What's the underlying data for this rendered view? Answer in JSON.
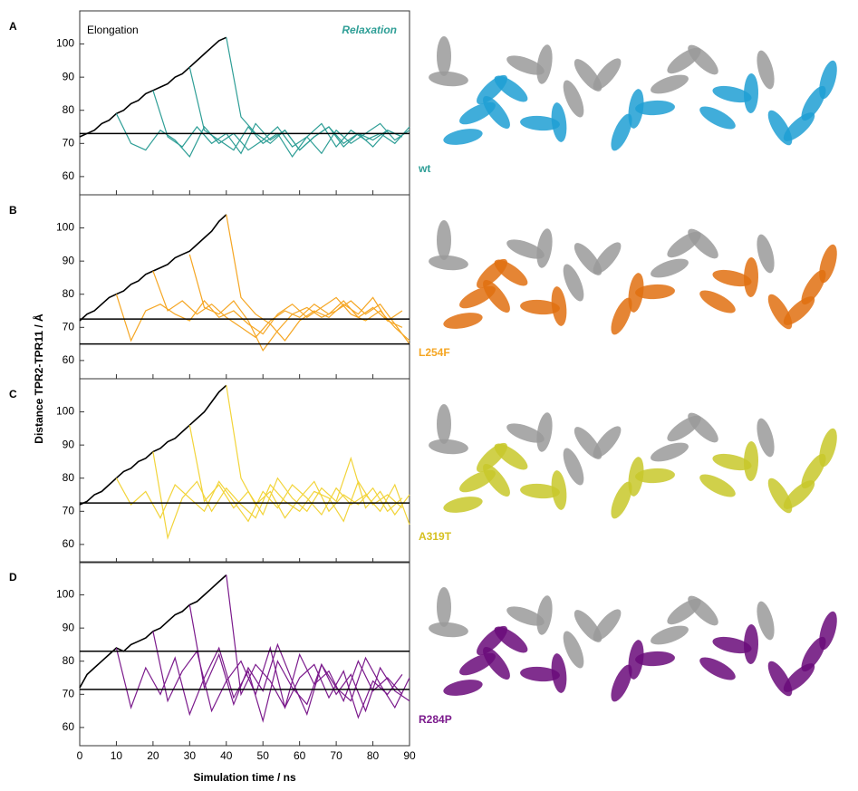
{
  "chart_data": [
    {
      "type": "line",
      "panel": "A",
      "label": "wt",
      "label_color": "#2e9e96",
      "structure_color": "#1e9fd4",
      "annotations": [
        {
          "text": "Elongation",
          "color": "#000000"
        },
        {
          "text": "Relaxation",
          "color": "#2e9e96"
        }
      ],
      "ylabel": "Distance TPR2-TPR11 / Å",
      "xlim": [
        0,
        90
      ],
      "xticks": [
        0,
        10,
        20,
        30,
        40,
        50,
        60,
        70,
        80,
        90
      ],
      "ylim": [
        54.5,
        110
      ],
      "yticks": [
        60,
        70,
        80,
        90,
        100
      ],
      "reference_lines": [
        73
      ],
      "series": [
        {
          "color": "#000000",
          "x": [
            0,
            2,
            4,
            6,
            8,
            10,
            12,
            14,
            16,
            18,
            20,
            22,
            24,
            26,
            28,
            30,
            32,
            34,
            36,
            38,
            40
          ],
          "values": [
            72,
            73,
            74,
            76,
            77,
            79,
            80,
            82,
            83,
            85,
            86,
            87,
            88,
            90,
            91,
            93,
            95,
            97,
            99,
            101,
            102
          ]
        },
        {
          "color": "#2e9e96",
          "x": [
            10,
            14,
            18,
            22,
            26,
            30,
            34,
            38,
            42,
            46,
            50,
            54,
            58,
            62,
            66,
            70,
            74,
            78,
            82,
            86,
            90
          ],
          "values": [
            79,
            70,
            68,
            74,
            71,
            66,
            75,
            70,
            73,
            68,
            71,
            75,
            69,
            72,
            67,
            74,
            70,
            73,
            76,
            71,
            74
          ]
        },
        {
          "color": "#2e9e96",
          "x": [
            20,
            24,
            28,
            32,
            36,
            40,
            44,
            48,
            52,
            56,
            60,
            64,
            68,
            72,
            76,
            80,
            84,
            88
          ],
          "values": [
            86,
            72,
            69,
            75,
            70,
            73,
            67,
            76,
            71,
            74,
            68,
            72,
            75,
            70,
            73,
            69,
            74,
            72
          ]
        },
        {
          "color": "#2e9e96",
          "x": [
            30,
            34,
            38,
            42,
            46,
            50,
            54,
            58,
            62,
            66,
            70,
            74,
            78,
            82,
            86,
            90
          ],
          "values": [
            93,
            74,
            71,
            68,
            75,
            70,
            73,
            66,
            72,
            76,
            69,
            74,
            71,
            73,
            70,
            75
          ]
        },
        {
          "color": "#2e9e96",
          "x": [
            40,
            44,
            48,
            52,
            56,
            60,
            64,
            68,
            72,
            76,
            80,
            84,
            88
          ],
          "values": [
            102,
            78,
            73,
            70,
            74,
            68,
            72,
            75,
            69,
            73,
            71,
            74,
            72
          ]
        }
      ]
    },
    {
      "type": "line",
      "panel": "B",
      "label": "L254F",
      "label_color": "#f5a623",
      "structure_color": "#e07010",
      "xlim": [
        0,
        90
      ],
      "xticks": [
        0,
        10,
        20,
        30,
        40,
        50,
        60,
        70,
        80,
        90
      ],
      "ylim": [
        54.5,
        110
      ],
      "yticks": [
        60,
        70,
        80,
        90,
        100
      ],
      "reference_lines": [
        72.5,
        65
      ],
      "series": [
        {
          "color": "#000000",
          "x": [
            0,
            2,
            4,
            6,
            8,
            10,
            12,
            14,
            16,
            18,
            20,
            22,
            24,
            26,
            28,
            30,
            32,
            34,
            36,
            38,
            40
          ],
          "values": [
            72,
            74,
            75,
            77,
            79,
            80,
            81,
            83,
            84,
            86,
            87,
            88,
            89,
            91,
            92,
            93,
            95,
            97,
            99,
            102,
            104
          ]
        },
        {
          "color": "#f5a623",
          "x": [
            10,
            14,
            18,
            22,
            26,
            30,
            34,
            38,
            42,
            46,
            50,
            54,
            58,
            62,
            66,
            70,
            74,
            78,
            82,
            86,
            90
          ],
          "values": [
            80,
            66,
            75,
            77,
            74,
            72,
            78,
            73,
            75,
            71,
            68,
            74,
            77,
            73,
            76,
            79,
            74,
            72,
            75,
            70,
            66
          ]
        },
        {
          "color": "#f5a623",
          "x": [
            20,
            24,
            28,
            32,
            36,
            40,
            44,
            48,
            52,
            56,
            60,
            64,
            68,
            72,
            76,
            80,
            84,
            88
          ],
          "values": [
            87,
            75,
            78,
            74,
            77,
            73,
            70,
            67,
            72,
            75,
            73,
            77,
            74,
            78,
            73,
            76,
            72,
            70
          ]
        },
        {
          "color": "#f5a623",
          "x": [
            30,
            34,
            38,
            42,
            46,
            50,
            54,
            58,
            62,
            66,
            70,
            74,
            78,
            82,
            86,
            90
          ],
          "values": [
            92,
            76,
            74,
            78,
            72,
            63,
            69,
            74,
            76,
            73,
            75,
            78,
            74,
            77,
            71,
            65
          ]
        },
        {
          "color": "#f5a623",
          "x": [
            40,
            44,
            48,
            52,
            56,
            60,
            64,
            68,
            72,
            76,
            80,
            84,
            88
          ],
          "values": [
            104,
            79,
            74,
            71,
            66,
            72,
            75,
            73,
            77,
            74,
            79,
            72,
            75
          ]
        }
      ]
    },
    {
      "type": "line",
      "panel": "C",
      "label": "A319T",
      "label_color": "#d6c020",
      "structure_color": "#c8c82a",
      "xlim": [
        0,
        90
      ],
      "xticks": [
        0,
        10,
        20,
        30,
        40,
        50,
        60,
        70,
        80,
        90
      ],
      "ylim": [
        54.5,
        110
      ],
      "yticks": [
        60,
        70,
        80,
        90,
        100
      ],
      "reference_lines": [
        72.5
      ],
      "series": [
        {
          "color": "#000000",
          "x": [
            0,
            2,
            4,
            6,
            8,
            10,
            12,
            14,
            16,
            18,
            20,
            22,
            24,
            26,
            28,
            30,
            32,
            34,
            36,
            38,
            40
          ],
          "values": [
            72,
            73,
            75,
            76,
            78,
            80,
            82,
            83,
            85,
            86,
            88,
            89,
            91,
            92,
            94,
            96,
            98,
            100,
            103,
            106,
            108
          ]
        },
        {
          "color": "#f2d43a",
          "x": [
            10,
            14,
            18,
            22,
            26,
            30,
            34,
            38,
            42,
            46,
            50,
            54,
            58,
            62,
            66,
            70,
            74,
            78,
            82,
            86,
            90
          ],
          "values": [
            80,
            72,
            76,
            68,
            78,
            74,
            70,
            79,
            73,
            67,
            76,
            71,
            78,
            74,
            69,
            77,
            72,
            75,
            70,
            78,
            66
          ]
        },
        {
          "color": "#f2d43a",
          "x": [
            20,
            24,
            28,
            32,
            36,
            40,
            44,
            48,
            52,
            56,
            60,
            64,
            68,
            72,
            76,
            80,
            84,
            88
          ],
          "values": [
            88,
            62,
            74,
            79,
            70,
            77,
            72,
            68,
            78,
            73,
            70,
            76,
            74,
            67,
            79,
            72,
            75,
            71
          ]
        },
        {
          "color": "#f2d43a",
          "x": [
            30,
            34,
            38,
            42,
            46,
            50,
            54,
            58,
            62,
            66,
            70,
            74,
            78,
            82,
            86,
            90
          ],
          "values": [
            96,
            73,
            78,
            71,
            76,
            69,
            80,
            74,
            70,
            77,
            73,
            86,
            71,
            76,
            69,
            75
          ]
        },
        {
          "color": "#f2d43a",
          "x": [
            40,
            44,
            48,
            52,
            56,
            60,
            64,
            68,
            72,
            76,
            80,
            84,
            88
          ],
          "values": [
            108,
            80,
            72,
            76,
            68,
            74,
            79,
            70,
            75,
            72,
            77,
            70,
            74
          ]
        }
      ]
    },
    {
      "type": "line",
      "panel": "D",
      "label": "R284P",
      "label_color": "#7b1a8c",
      "structure_color": "#6a0a7a",
      "xlabel": "Simulation time / ns",
      "xlim": [
        0,
        90
      ],
      "xticks": [
        0,
        10,
        20,
        30,
        40,
        50,
        60,
        70,
        80,
        90
      ],
      "ylim": [
        54.5,
        110
      ],
      "yticks": [
        60,
        70,
        80,
        90,
        100
      ],
      "reference_lines": [
        83,
        71.5
      ],
      "series": [
        {
          "color": "#000000",
          "x": [
            0,
            2,
            4,
            6,
            8,
            10,
            12,
            14,
            16,
            18,
            20,
            22,
            24,
            26,
            28,
            30,
            32,
            34,
            36,
            38,
            40
          ],
          "values": [
            72,
            76,
            78,
            80,
            82,
            84,
            83,
            85,
            86,
            87,
            89,
            90,
            92,
            94,
            95,
            97,
            98,
            100,
            102,
            104,
            106
          ]
        },
        {
          "color": "#7b1a8c",
          "x": [
            10,
            14,
            18,
            22,
            26,
            30,
            34,
            38,
            42,
            46,
            50,
            54,
            58,
            62,
            66,
            70,
            74,
            78,
            82,
            86,
            90
          ],
          "values": [
            84,
            66,
            78,
            70,
            81,
            64,
            75,
            84,
            69,
            77,
            62,
            80,
            72,
            67,
            79,
            70,
            76,
            65,
            78,
            71,
            68
          ]
        },
        {
          "color": "#7b1a8c",
          "x": [
            20,
            24,
            28,
            32,
            36,
            40,
            44,
            48,
            52,
            56,
            60,
            64,
            68,
            72,
            76,
            80,
            84,
            88
          ],
          "values": [
            89,
            68,
            77,
            83,
            65,
            74,
            80,
            70,
            84,
            66,
            75,
            79,
            69,
            77,
            63,
            74,
            70,
            76
          ]
        },
        {
          "color": "#7b1a8c",
          "x": [
            30,
            34,
            38,
            42,
            46,
            50,
            54,
            58,
            62,
            66,
            70,
            74,
            78,
            82,
            86,
            90
          ],
          "values": [
            97,
            72,
            82,
            67,
            78,
            71,
            85,
            74,
            64,
            79,
            72,
            68,
            81,
            73,
            66,
            75
          ]
        },
        {
          "color": "#7b1a8c",
          "x": [
            40,
            44,
            48,
            52,
            56,
            60,
            64,
            68,
            72,
            76,
            80,
            84,
            88
          ],
          "values": [
            106,
            70,
            79,
            74,
            66,
            82,
            73,
            77,
            68,
            80,
            71,
            75,
            70
          ]
        }
      ]
    }
  ]
}
